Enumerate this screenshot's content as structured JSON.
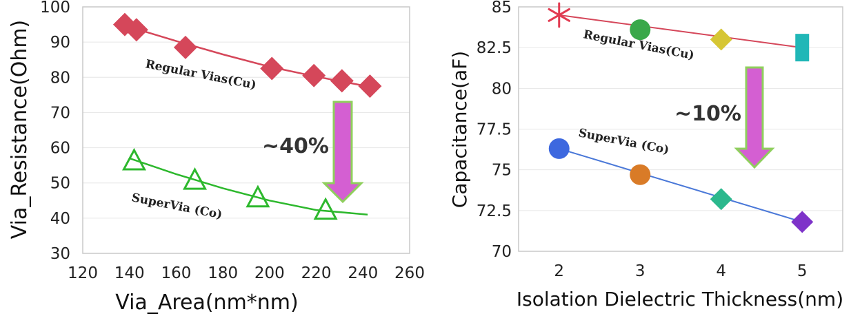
{
  "colors": {
    "regular": "#d5475a",
    "supervia": "#2db82d",
    "supervia_line_right": "#4a78d8",
    "arrow_fill": "#d45fd2",
    "arrow_stroke": "#8fcf5d"
  },
  "chart_data": [
    {
      "type": "scatter",
      "xlabel": "Via_Area(nm*nm)",
      "ylabel": "Via_Resistance(Ohm)",
      "xlim": [
        120,
        260
      ],
      "ylim": [
        30,
        100
      ],
      "xticks": [
        "120",
        "140",
        "160",
        "180",
        "200",
        "220",
        "240",
        "260"
      ],
      "yticks": [
        "30",
        "40",
        "50",
        "60",
        "70",
        "80",
        "90",
        "100"
      ],
      "series": [
        {
          "name": "Regular Vias(Cu)",
          "marker": "diamond",
          "x": [
            138,
            143,
            164,
            201,
            219,
            231,
            243
          ],
          "y": [
            95,
            93.5,
            88.5,
            82.5,
            80.5,
            79,
            77.5
          ],
          "trend_x": [
            139,
            160,
            180,
            200,
            220,
            243
          ],
          "trend_y": [
            94.5,
            90.3,
            86.5,
            83,
            80.2,
            77.3
          ]
        },
        {
          "name": "SuperVia (Co)",
          "marker": "triangle",
          "x": [
            142,
            168,
            195,
            224
          ],
          "y": [
            56,
            50.5,
            45.5,
            42
          ],
          "trend_x": [
            140,
            160,
            180,
            200,
            220,
            242
          ],
          "trend_y": [
            57,
            52.5,
            48.5,
            45,
            42.3,
            41
          ]
        }
      ],
      "annotation": "~40%"
    },
    {
      "type": "scatter",
      "xlabel": "Isolation Dielectric Thickness(nm)",
      "ylabel": "Capacitance(aF)",
      "xlim": [
        1.5,
        5.5
      ],
      "ylim": [
        70,
        85
      ],
      "xticks": [
        "2",
        "3",
        "4",
        "5"
      ],
      "yticks": [
        "70",
        "72.5",
        "75",
        "77.5",
        "80",
        "82.5",
        "85"
      ],
      "series": [
        {
          "name": "Regular Vias(Cu)",
          "points": [
            {
              "x": 2,
              "y": 84.5,
              "marker": "asterisk",
              "color": "#e23a50"
            },
            {
              "x": 3,
              "y": 83.6,
              "marker": "circle",
              "color": "#3aa84a"
            },
            {
              "x": 4,
              "y": 83.0,
              "marker": "diamond",
              "color": "#d6c634"
            },
            {
              "x": 5,
              "y": 82.5,
              "marker": "bar",
              "color": "#20b7b7"
            }
          ],
          "trend": [
            [
              2,
              84.5
            ],
            [
              5,
              82.5
            ]
          ]
        },
        {
          "name": "SuperVia (Co)",
          "points": [
            {
              "x": 2,
              "y": 76.3,
              "marker": "circle",
              "color": "#3d68df"
            },
            {
              "x": 3,
              "y": 74.7,
              "marker": "circle",
              "color": "#d97b27"
            },
            {
              "x": 4,
              "y": 73.2,
              "marker": "diamond",
              "color": "#2bb88d"
            },
            {
              "x": 5,
              "y": 71.8,
              "marker": "diamond",
              "color": "#7e33c9"
            }
          ],
          "trend": [
            [
              2,
              76.3
            ],
            [
              5,
              71.8
            ]
          ]
        }
      ],
      "annotation": "~10%"
    }
  ]
}
